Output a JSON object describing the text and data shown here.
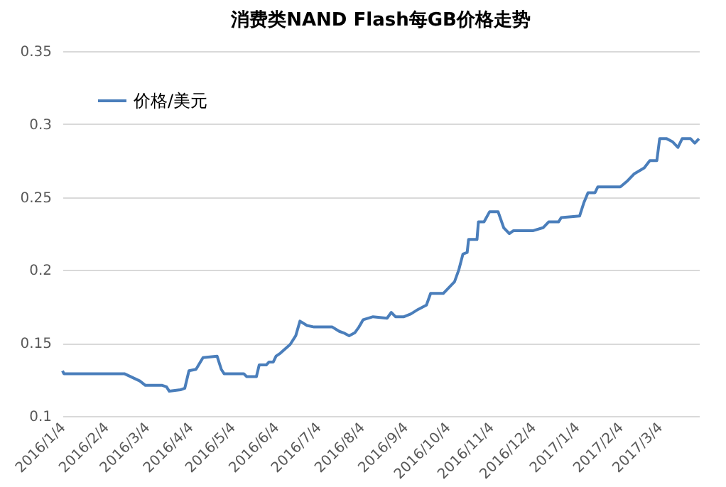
{
  "chart_data": {
    "type": "line",
    "title": "消费类NAND Flash每GB价格走势",
    "x": [
      "2016-01-04",
      "2016-01-05",
      "2016-02-17",
      "2016-02-28",
      "2016-03-03",
      "2016-03-15",
      "2016-03-18",
      "2016-03-20",
      "2016-03-28",
      "2016-03-31",
      "2016-04-03",
      "2016-04-08",
      "2016-04-13",
      "2016-04-23",
      "2016-04-26",
      "2016-04-28",
      "2016-05-12",
      "2016-05-14",
      "2016-05-21",
      "2016-05-23",
      "2016-05-28",
      "2016-05-30",
      "2016-06-02",
      "2016-06-04",
      "2016-06-07",
      "2016-06-14",
      "2016-06-18",
      "2016-06-21",
      "2016-06-26",
      "2016-07-01",
      "2016-07-14",
      "2016-07-19",
      "2016-07-22",
      "2016-07-26",
      "2016-07-30",
      "2016-08-02",
      "2016-08-05",
      "2016-08-12",
      "2016-08-22",
      "2016-08-25",
      "2016-08-28",
      "2016-09-03",
      "2016-09-08",
      "2016-09-13",
      "2016-09-19",
      "2016-09-22",
      "2016-10-01",
      "2016-10-09",
      "2016-10-12",
      "2016-10-15",
      "2016-10-18",
      "2016-10-19",
      "2016-10-25",
      "2016-10-26",
      "2016-10-30",
      "2016-11-03",
      "2016-11-09",
      "2016-11-13",
      "2016-11-17",
      "2016-11-20",
      "2016-12-04",
      "2016-12-11",
      "2016-12-15",
      "2016-12-22",
      "2016-12-24",
      "2017-01-06",
      "2017-01-09",
      "2017-01-12",
      "2017-01-17",
      "2017-01-19",
      "2017-02-04",
      "2017-02-09",
      "2017-02-14",
      "2017-02-21",
      "2017-02-25",
      "2017-03-02",
      "2017-03-04",
      "2017-03-09",
      "2017-03-13",
      "2017-03-17",
      "2017-03-20",
      "2017-03-26",
      "2017-03-29",
      "2017-04-01"
    ],
    "series": [
      {
        "name": "价格/美元",
        "color": "#4a7ebb",
        "values": [
          0.131,
          0.129,
          0.129,
          0.124,
          0.121,
          0.121,
          0.12,
          0.117,
          0.118,
          0.119,
          0.131,
          0.132,
          0.14,
          0.141,
          0.132,
          0.129,
          0.129,
          0.127,
          0.127,
          0.135,
          0.135,
          0.137,
          0.137,
          0.141,
          0.143,
          0.149,
          0.155,
          0.165,
          0.162,
          0.161,
          0.161,
          0.158,
          0.157,
          0.155,
          0.157,
          0.161,
          0.166,
          0.168,
          0.167,
          0.171,
          0.168,
          0.168,
          0.17,
          0.173,
          0.176,
          0.184,
          0.184,
          0.192,
          0.2,
          0.211,
          0.212,
          0.221,
          0.221,
          0.233,
          0.233,
          0.24,
          0.24,
          0.229,
          0.225,
          0.227,
          0.227,
          0.229,
          0.233,
          0.233,
          0.236,
          0.237,
          0.246,
          0.253,
          0.253,
          0.257,
          0.257,
          0.261,
          0.266,
          0.27,
          0.275,
          0.275,
          0.29,
          0.29,
          0.288,
          0.284,
          0.29,
          0.29,
          0.287,
          0.29
        ]
      }
    ],
    "xlim": [
      "2016-01-04",
      "2017-04-01"
    ],
    "xticks": [
      {
        "value": "2016-01-04",
        "label": "2016/1/4"
      },
      {
        "value": "2016-02-04",
        "label": "2016/2/4"
      },
      {
        "value": "2016-03-04",
        "label": "2016/3/4"
      },
      {
        "value": "2016-04-04",
        "label": "2016/4/4"
      },
      {
        "value": "2016-05-04",
        "label": "2016/5/4"
      },
      {
        "value": "2016-06-04",
        "label": "2016/6/4"
      },
      {
        "value": "2016-07-04",
        "label": "2016/7/4"
      },
      {
        "value": "2016-08-04",
        "label": "2016/8/4"
      },
      {
        "value": "2016-09-04",
        "label": "2016/9/4"
      },
      {
        "value": "2016-10-04",
        "label": "2016/10/4"
      },
      {
        "value": "2016-11-04",
        "label": "2016/11/4"
      },
      {
        "value": "2016-12-04",
        "label": "2016/12/4"
      },
      {
        "value": "2017-01-04",
        "label": "2017/1/4"
      },
      {
        "value": "2017-02-04",
        "label": "2017/2/4"
      },
      {
        "value": "2017-03-04",
        "label": "2017/3/4"
      }
    ],
    "ylim": [
      0.1,
      0.35
    ],
    "yticks": [
      {
        "value": 0.1,
        "label": "0.1"
      },
      {
        "value": 0.15,
        "label": "0.15"
      },
      {
        "value": 0.2,
        "label": "0.2"
      },
      {
        "value": 0.25,
        "label": "0.25"
      },
      {
        "value": 0.3,
        "label": "0.3"
      },
      {
        "value": 0.35,
        "label": "0.35"
      }
    ],
    "grid": "y",
    "legend": "top left",
    "marker": "none",
    "line_style": "solid"
  }
}
